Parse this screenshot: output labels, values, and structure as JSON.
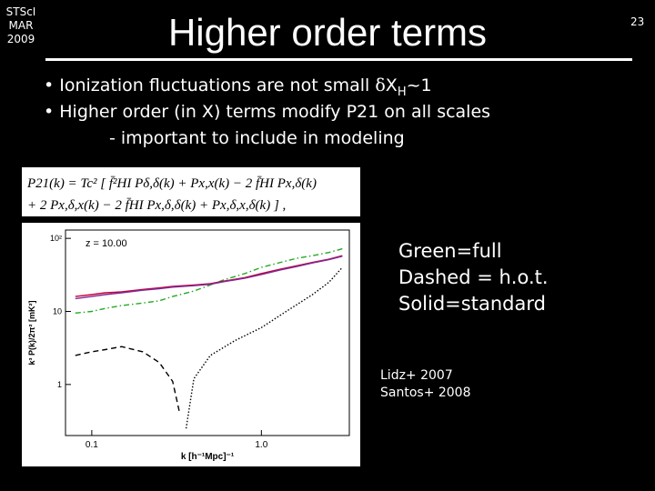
{
  "header": {
    "org_lines": [
      "STScI",
      "MAR",
      "2009"
    ],
    "title": "Higher order terms",
    "page_number": "23"
  },
  "bullets": {
    "b1_prefix": "• Ionization fluctuations are not small ",
    "b1_delta": "δ",
    "b1_x": "X",
    "b1_sub": "H",
    "b1_suffix": "~1",
    "b2": "• Higher order (in X) terms modify P21 on all scales",
    "b3": "- important to include in modeling"
  },
  "equation": {
    "line1": "P21(k) = Tc² [ f̄²HI Pδ,δ(k) + Px,x(k) − 2 f̄HI Px,δ(k)",
    "line2": "+ 2 Px,δ,x(k) − 2 f̄HI Px,δ,δ(k) + Px,δ,x,δ(k) ] ,"
  },
  "legend_text": [
    "Green=full",
    "Dashed = h.o.t.",
    "Solid=standard"
  ],
  "citations": [
    "Lidz+ 2007",
    "Santos+ 2008"
  ],
  "chart_data": {
    "type": "line",
    "annotation": "z = 10.00",
    "xlabel": "k  [h⁻¹Mpc]⁻¹",
    "ylabel": "k³ P(k)/2π² [mK²]",
    "x_scale": "log",
    "y_scale": "log",
    "xlim": [
      0.07,
      3.3
    ],
    "ylim": [
      0.2,
      130
    ],
    "x_ticks": [
      {
        "v": 0.1,
        "label": "0.1"
      },
      {
        "v": 1,
        "label": "1.0"
      }
    ],
    "y_ticks": [
      {
        "v": 1,
        "label": "1"
      },
      {
        "v": 10,
        "label": "10"
      },
      {
        "v": 100,
        "label": "10²"
      }
    ],
    "colors": {
      "full": "#22aa22",
      "standard": "#cc0033",
      "hot": "#000000"
    },
    "series": [
      {
        "key": "full",
        "style": "dash-dot",
        "x": [
          0.08,
          0.1,
          0.12,
          0.15,
          0.2,
          0.25,
          0.3,
          0.4,
          0.5,
          0.6,
          0.8,
          1.0,
          1.3,
          1.6,
          2.0,
          2.5,
          3.0
        ],
        "y": [
          9.5,
          10,
          11,
          12,
          13,
          14,
          16,
          19,
          23,
          27,
          33,
          40,
          47,
          53,
          58,
          64,
          72
        ]
      },
      {
        "key": "standard",
        "style": "solid",
        "x": [
          0.08,
          0.1,
          0.12,
          0.15,
          0.2,
          0.25,
          0.3,
          0.4,
          0.5,
          0.6,
          0.8,
          1.0,
          1.3,
          1.6,
          2.0,
          2.5,
          3.0
        ],
        "y": [
          16,
          17,
          18,
          18.5,
          20,
          21,
          22,
          23,
          24,
          26,
          29,
          33,
          38,
          42,
          47,
          52,
          58
        ]
      },
      {
        "key": "standard_purple",
        "style": "solid",
        "x": [
          0.08,
          0.1,
          0.12,
          0.15,
          0.2,
          0.25,
          0.3,
          0.4,
          0.5,
          0.6,
          0.8,
          1.0,
          1.3,
          1.6,
          2.0,
          2.5,
          3.0
        ],
        "y": [
          15,
          16,
          17,
          18,
          19.5,
          20.5,
          21.5,
          22.5,
          23.5,
          25.5,
          28.5,
          32,
          37,
          41,
          46,
          51,
          57
        ]
      },
      {
        "key": "hot",
        "style": "dashed",
        "x": [
          0.08,
          0.1,
          0.12,
          0.15,
          0.2,
          0.25,
          0.3,
          0.33
        ],
        "y": [
          2.5,
          2.8,
          3.0,
          3.3,
          2.8,
          2.0,
          1.1,
          0.4
        ]
      },
      {
        "key": "hot",
        "style": "dotted",
        "x": [
          0.36,
          0.4,
          0.5,
          0.7,
          1.0,
          1.4,
          2.0,
          2.5,
          3.0
        ],
        "y": [
          0.25,
          1.2,
          2.5,
          4,
          6,
          10,
          17,
          25,
          40
        ]
      }
    ]
  }
}
